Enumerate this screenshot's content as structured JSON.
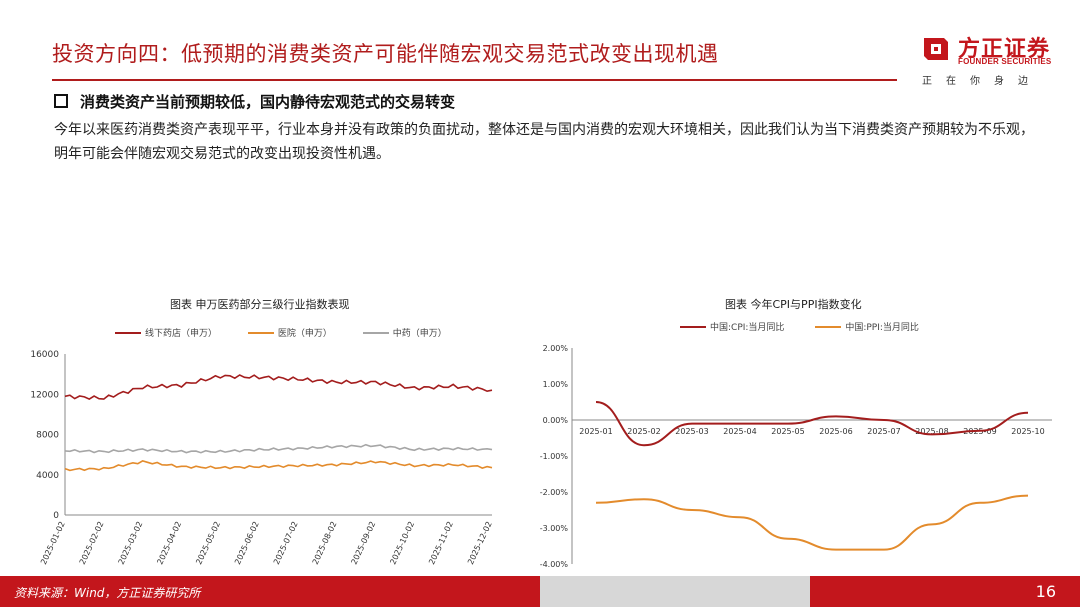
{
  "header": {
    "title": "投资方向四：低预期的消费类资产可能伴随宏观交易范式改变出现机遇",
    "logo_cn": "方正证券",
    "logo_en": "FOUNDER SECURITIES",
    "slogan": "正在你身边"
  },
  "section": {
    "heading": "消费类资产当前预期较低，国内静待宏观范式的交易转变",
    "paragraph": "今年以来医药消费类资产表现平平，行业本身并没有政策的负面扰动，整体还是与国内消费的宏观大环境相关，因此我们认为当下消费类资产预期较为不乐观，明年可能会伴随宏观交易范式的改变出现投资性机遇。"
  },
  "colors": {
    "brand": "#c3161c",
    "red_series": "#a31d1d",
    "orange_series": "#e38b2c",
    "gray_series": "#a6a6a6"
  },
  "chart_data": [
    {
      "type": "line",
      "title": "图表 申万医药部分三级行业指数表现",
      "x": [
        "2025-01-02",
        "2025-02-02",
        "2025-03-02",
        "2025-04-02",
        "2025-05-02",
        "2025-06-02",
        "2025-07-02",
        "2025-08-02",
        "2025-09-02",
        "2025-10-02",
        "2025-11-02",
        "2025-12-02"
      ],
      "ylim": [
        0,
        16000
      ],
      "yticks": [
        "0",
        "4000",
        "8000",
        "12000",
        "16000"
      ],
      "series": [
        {
          "name": "线下药店（申万）",
          "color": "#a31d1d",
          "values": [
            11800,
            11600,
            12700,
            12900,
            13800,
            13700,
            13500,
            13200,
            13200,
            12600,
            12800,
            12400
          ]
        },
        {
          "name": "医院（申万）",
          "color": "#e38b2c",
          "values": [
            4500,
            4600,
            5300,
            4800,
            4700,
            4800,
            4900,
            5000,
            5300,
            4900,
            5000,
            4700
          ]
        },
        {
          "name": "中药（申万）",
          "color": "#a6a6a6",
          "values": [
            6400,
            6300,
            6500,
            6300,
            6300,
            6500,
            6600,
            6800,
            6900,
            6500,
            6600,
            6500
          ]
        }
      ]
    },
    {
      "type": "line",
      "title": "图表 今年CPI与PPI指数变化",
      "x": [
        "2025-01",
        "2025-02",
        "2025-03",
        "2025-04",
        "2025-05",
        "2025-06",
        "2025-07",
        "2025-08",
        "2025-09",
        "2025-10"
      ],
      "ylim": [
        -4,
        2
      ],
      "yticks": [
        "2.00%",
        "1.00%",
        "0.00%",
        "-1.00%",
        "-2.00%",
        "-3.00%",
        "-4.00%"
      ],
      "series": [
        {
          "name": "中国:CPI:当月同比",
          "color": "#a31d1d",
          "values": [
            0.5,
            -0.7,
            -0.1,
            -0.1,
            -0.1,
            0.1,
            0.0,
            -0.4,
            -0.3,
            0.2
          ]
        },
        {
          "name": "中国:PPI:当月同比",
          "color": "#e38b2c",
          "values": [
            -2.3,
            -2.2,
            -2.5,
            -2.7,
            -3.3,
            -3.6,
            -3.6,
            -2.9,
            -2.3,
            -2.1
          ]
        }
      ]
    }
  ],
  "footer": {
    "source": "资料来源：Wind，方正证券研究所",
    "page": "16"
  }
}
